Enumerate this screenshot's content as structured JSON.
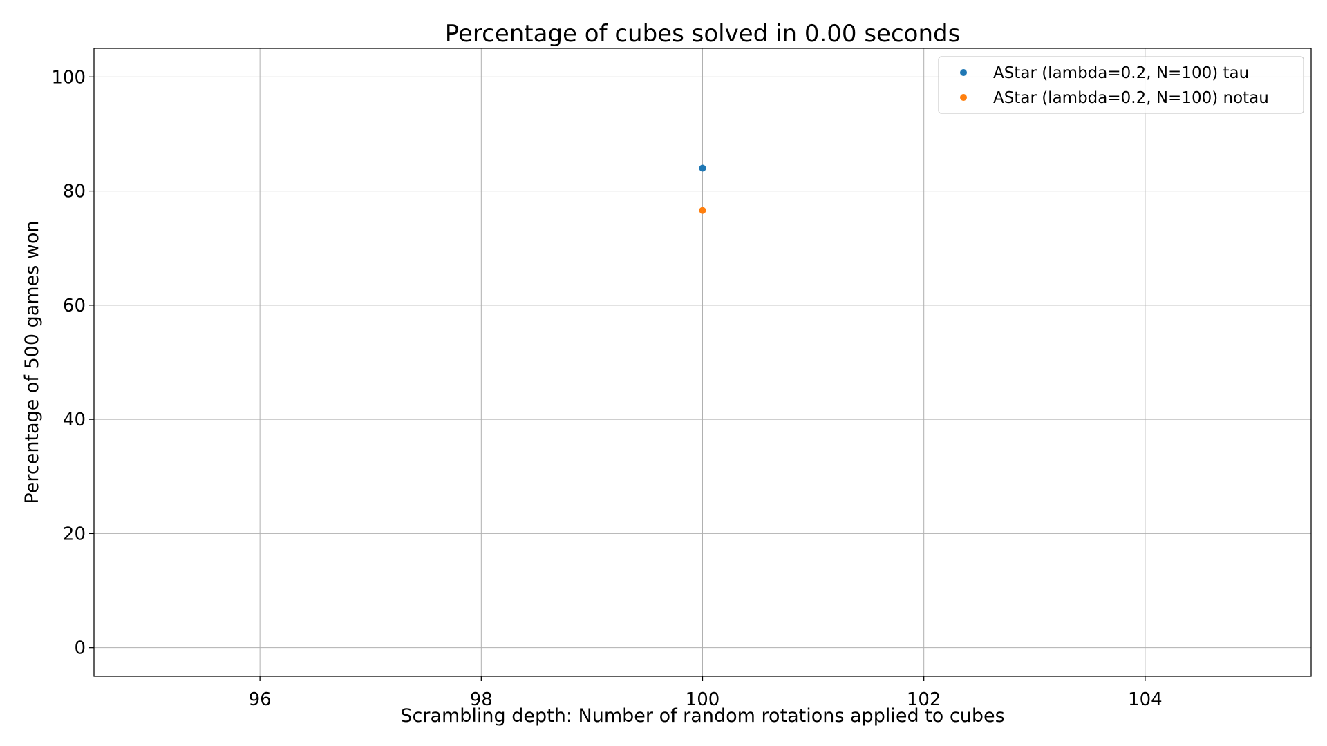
{
  "chart_data": {
    "type": "scatter",
    "title": "Percentage of cubes solved in 0.00 seconds",
    "xlabel": "Scrambling depth: Number of random rotations applied to cubes",
    "ylabel": "Percentage of 500 games won",
    "xlim": [
      94.5,
      105.5
    ],
    "ylim": [
      -5,
      105
    ],
    "xticks": [
      96,
      98,
      100,
      102,
      104
    ],
    "yticks": [
      0,
      20,
      40,
      60,
      80,
      100
    ],
    "grid": true,
    "legend_position": "top-right",
    "series": [
      {
        "name": "AStar (lambda=0.2, N=100) tau",
        "color": "#1f77b4",
        "points": [
          {
            "x": 100,
            "y": 84.0
          }
        ]
      },
      {
        "name": "AStar (lambda=0.2, N=100) notau",
        "color": "#ff7f0e",
        "points": [
          {
            "x": 100,
            "y": 76.6
          }
        ]
      }
    ]
  }
}
